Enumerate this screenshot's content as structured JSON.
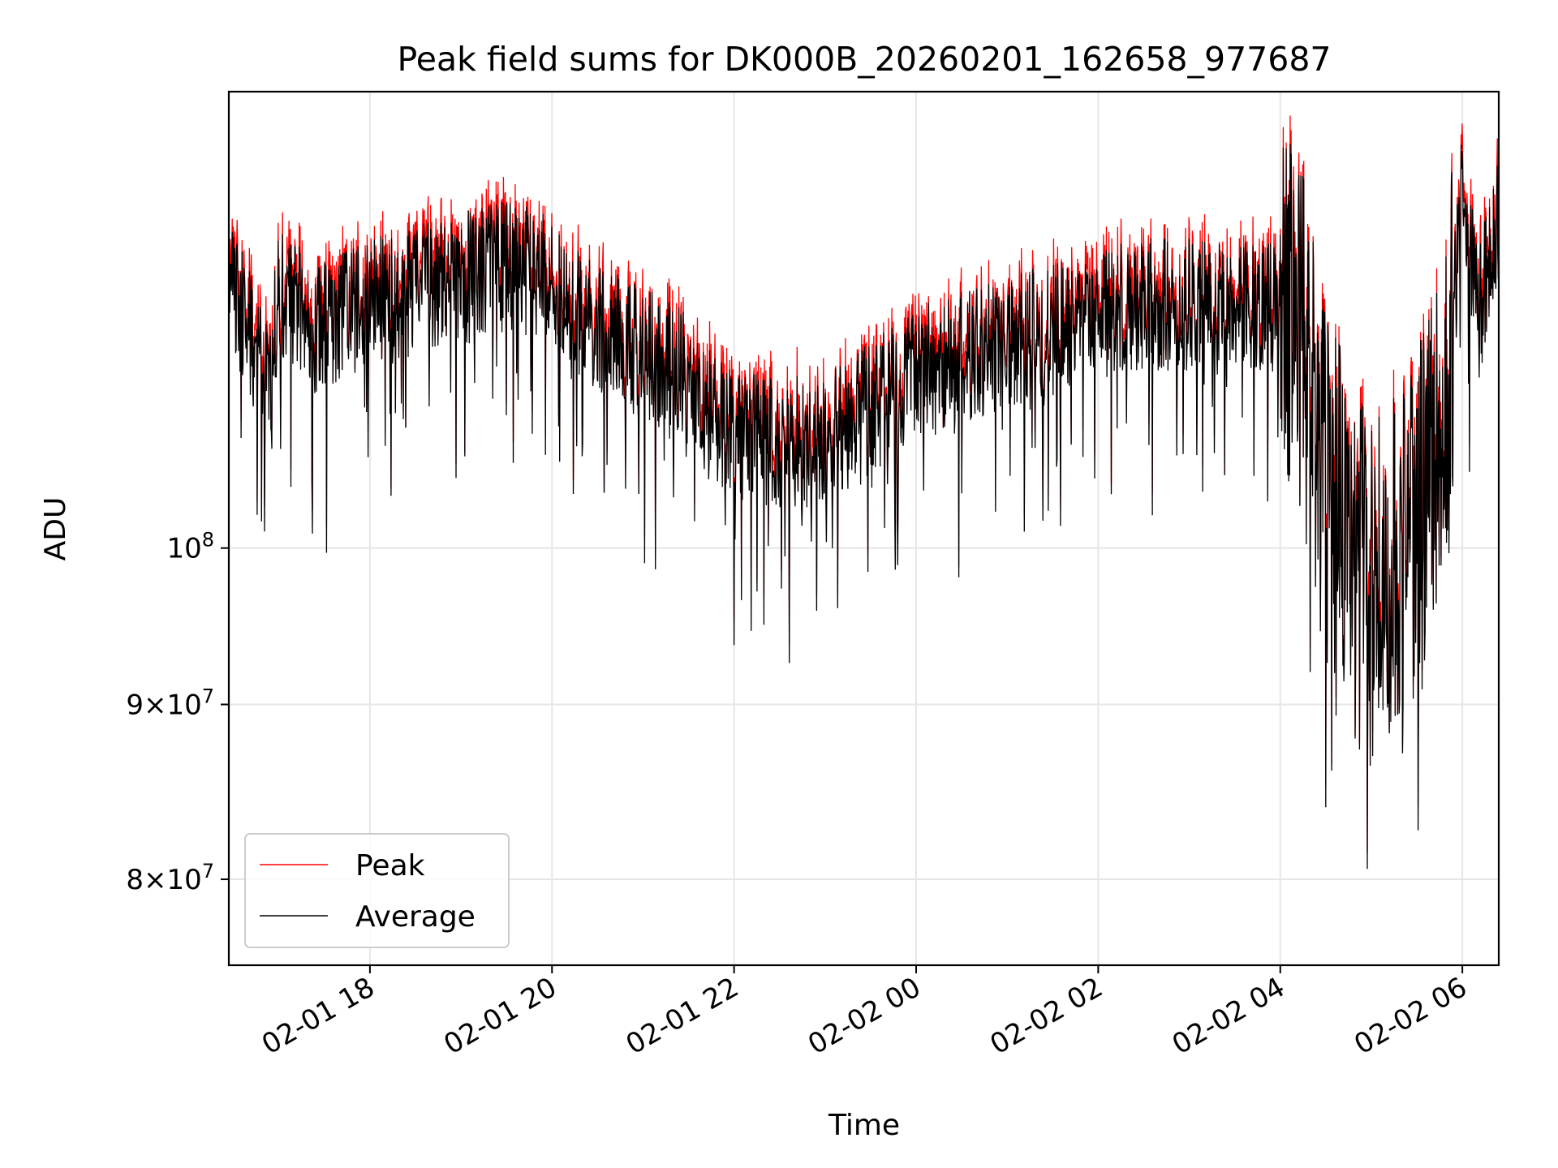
{
  "chart_data": {
    "type": "line",
    "title": "Peak field sums for DK000B_20260201_162658_977687",
    "xlabel": "Time",
    "ylabel": "ADU",
    "yscale": "log",
    "ylim": [
      75500000,
      136000000
    ],
    "xlim_hours": [
      16.45,
      30.4
    ],
    "grid": true,
    "legend_position": "lower-left",
    "x_ticks": [
      {
        "hour": 18,
        "label": "02-01 18"
      },
      {
        "hour": 20,
        "label": "02-01 20"
      },
      {
        "hour": 22,
        "label": "02-01 22"
      },
      {
        "hour": 24,
        "label": "02-02 00"
      },
      {
        "hour": 26,
        "label": "02-02 02"
      },
      {
        "hour": 28,
        "label": "02-02 04"
      },
      {
        "hour": 30,
        "label": "02-02 06"
      }
    ],
    "y_ticks": [
      {
        "value": 80000000,
        "mantissa": "8",
        "exp": "7",
        "has_mantissa": true
      },
      {
        "value": 90000000,
        "mantissa": "9",
        "exp": "7",
        "has_mantissa": true
      },
      {
        "value": 100000000,
        "mantissa": "",
        "exp": "8",
        "has_mantissa": false
      }
    ],
    "y_tick_base": "10",
    "y_tick_times": "×",
    "series": [
      {
        "name": "Peak",
        "color": "#ff0000"
      },
      {
        "name": "Average",
        "color": "#000000"
      }
    ],
    "envelope_hours": [
      16.45,
      16.9,
      17.0,
      17.4,
      18.0,
      19.0,
      19.5,
      20.0,
      20.5,
      21.0,
      21.4,
      21.6,
      22.0,
      22.5,
      23.0,
      23.5,
      24.0,
      24.6,
      25.0,
      25.5,
      26.0,
      26.5,
      27.0,
      27.5,
      28.0,
      28.2,
      28.5,
      29.0,
      29.5,
      29.8,
      30.0,
      30.2,
      30.4
    ],
    "envelope_adu": [
      120000000,
      112000000,
      119000000,
      116000000,
      118000000,
      120000000,
      121000000,
      120000000,
      116000000,
      114000000,
      113000000,
      110000000,
      108000000,
      107500000,
      107500000,
      110000000,
      113000000,
      114000000,
      115000000,
      116000000,
      117000000,
      118000000,
      118000000,
      117500000,
      118000000,
      117000000,
      105000000,
      97000000,
      102000000,
      108000000,
      127000000,
      118000000,
      125000000
    ]
  }
}
